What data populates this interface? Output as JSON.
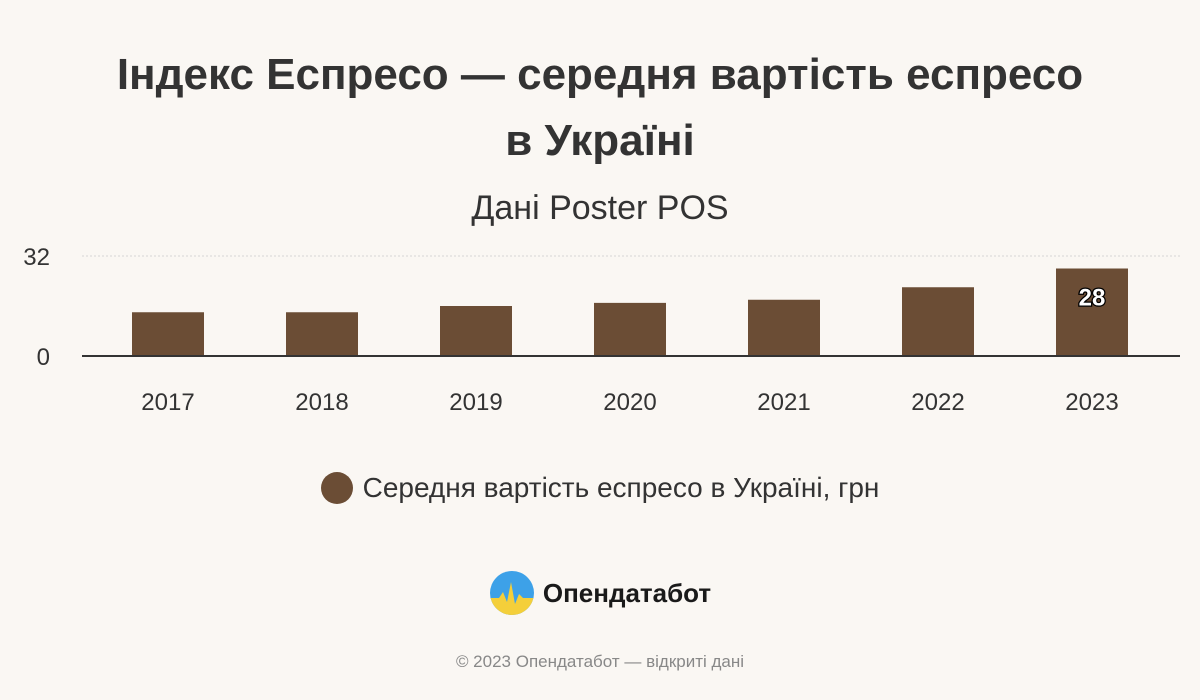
{
  "colors": {
    "bar": "#6b4d35",
    "axis": "#333333",
    "grid": "#d6d6d6",
    "label_text": "#ffffff"
  },
  "chart_data": {
    "type": "bar",
    "title": "Індекс Еспресо — середня вартість еспресо в Україні",
    "subtitle": "Дані Poster POS",
    "categories": [
      "2017",
      "2018",
      "2019",
      "2020",
      "2021",
      "2022",
      "2023"
    ],
    "series": [
      {
        "name": "Середня вартість еспресо в Україні, грн",
        "values": [
          14,
          14,
          16,
          17,
          18,
          22,
          28
        ]
      }
    ],
    "data_labels": [
      "",
      "",
      "",
      "",
      "",
      "",
      "28"
    ],
    "ylim": [
      0,
      32
    ],
    "yticks": [
      "0",
      "32"
    ],
    "xlabel": "",
    "ylabel": "",
    "grid": true,
    "legend_position": "bottom"
  },
  "brand": {
    "name": "Опендатабот"
  },
  "footer": {
    "text": "© 2023 Опендатабот — відкриті дані"
  }
}
